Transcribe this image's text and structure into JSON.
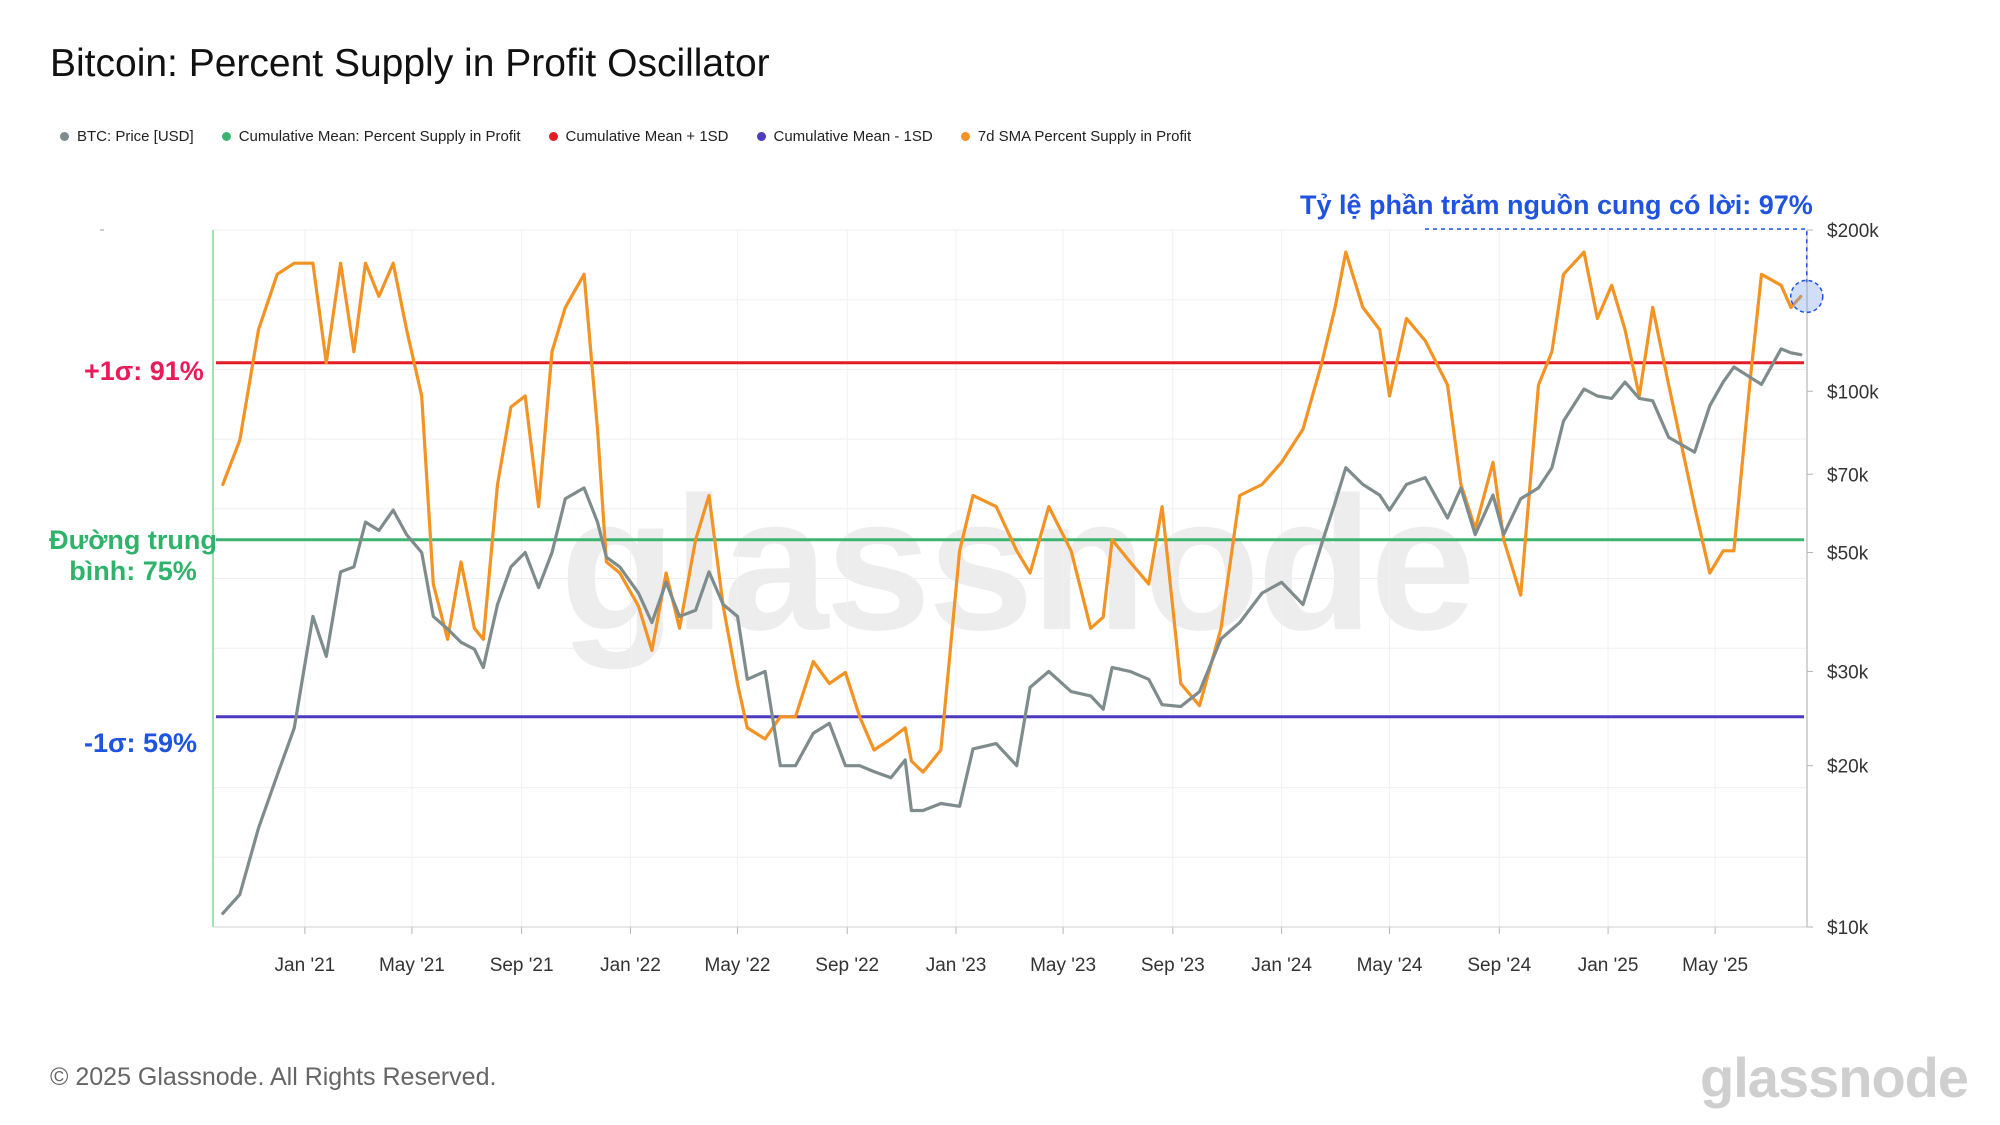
{
  "title": "Bitcoin: Percent Supply in Profit Oscillator",
  "legend": [
    {
      "label": "BTC: Price [USD]",
      "color": "#7f8c8d"
    },
    {
      "label": "Cumulative Mean: Percent Supply in Profit",
      "color": "#3cb371"
    },
    {
      "label": "Cumulative Mean + 1SD",
      "color": "#e31b23"
    },
    {
      "label": "Cumulative Mean - 1SD",
      "color": "#4b3cbf"
    },
    {
      "label": "7d SMA Percent Supply in Profit",
      "color": "#f39323"
    }
  ],
  "annotations": {
    "upper": "+1σ: 91%",
    "mean": "Đường trung bình: 75%",
    "lower": "-1σ: 59%",
    "current": "Tỷ lệ phần trăm nguồn cung có lời: 97%"
  },
  "footer": "© 2025 Glassnode. All Rights Reserved.",
  "watermark": "glassnode",
  "chart_data": {
    "type": "line",
    "x_ticks": [
      "Jan '21",
      "May '21",
      "Sep '21",
      "Jan '22",
      "May '22",
      "Sep '22",
      "Jan '23",
      "May '23",
      "Sep '23",
      "Jan '24",
      "May '24",
      "Sep '24",
      "Jan '25",
      "May '25"
    ],
    "y_right_ticks": [
      "$200k",
      "$100k",
      "$70k",
      "$50k",
      "$30k",
      "$20k",
      "$10k"
    ],
    "y_right_tick_values": [
      200000,
      100000,
      70000,
      50000,
      30000,
      20000,
      10000
    ],
    "y_right_scale": "log",
    "y_right_range": [
      10000,
      200000
    ],
    "y_left_range_percent": [
      40,
      103
    ],
    "reference_lines": {
      "mean_plus_1sd": 91,
      "mean": 75,
      "mean_minus_1sd": 59
    },
    "current_value": 97,
    "series": [
      {
        "name": "7d SMA Percent Supply in Profit",
        "axis": "left",
        "color": "#f39323",
        "x": [
          "2020-10-01",
          "2020-10-20",
          "2020-11-10",
          "2020-12-01",
          "2020-12-20",
          "2021-01-10",
          "2021-01-25",
          "2021-02-10",
          "2021-02-25",
          "2021-03-10",
          "2021-03-25",
          "2021-04-10",
          "2021-04-25",
          "2021-05-12",
          "2021-05-25",
          "2021-06-10",
          "2021-06-25",
          "2021-07-10",
          "2021-07-20",
          "2021-08-05",
          "2021-08-20",
          "2021-09-05",
          "2021-09-20",
          "2021-10-05",
          "2021-10-20",
          "2021-11-10",
          "2021-11-25",
          "2021-12-05",
          "2021-12-20",
          "2022-01-10",
          "2022-01-25",
          "2022-02-10",
          "2022-02-25",
          "2022-03-15",
          "2022-03-30",
          "2022-04-15",
          "2022-05-01",
          "2022-05-12",
          "2022-06-01",
          "2022-06-18",
          "2022-07-05",
          "2022-07-25",
          "2022-08-12",
          "2022-08-30",
          "2022-09-15",
          "2022-10-01",
          "2022-10-20",
          "2022-11-05",
          "2022-11-12",
          "2022-11-25",
          "2022-12-15",
          "2023-01-05",
          "2023-01-20",
          "2023-02-15",
          "2023-03-10",
          "2023-03-25",
          "2023-04-15",
          "2023-05-10",
          "2023-06-01",
          "2023-06-15",
          "2023-06-25",
          "2023-07-15",
          "2023-08-05",
          "2023-08-20",
          "2023-09-10",
          "2023-10-01",
          "2023-10-25",
          "2023-11-15",
          "2023-12-10",
          "2024-01-01",
          "2024-01-25",
          "2024-02-15",
          "2024-03-01",
          "2024-03-13",
          "2024-04-01",
          "2024-04-20",
          "2024-05-01",
          "2024-05-20",
          "2024-06-10",
          "2024-07-05",
          "2024-07-20",
          "2024-08-05",
          "2024-08-25",
          "2024-09-06",
          "2024-09-25",
          "2024-10-15",
          "2024-10-30",
          "2024-11-12",
          "2024-12-05",
          "2024-12-20",
          "2025-01-05",
          "2025-01-20",
          "2025-02-05",
          "2025-02-20",
          "2025-03-10",
          "2025-04-08",
          "2025-04-25",
          "2025-05-10",
          "2025-05-22",
          "2025-06-10",
          "2025-06-22",
          "2025-07-14",
          "2025-07-25",
          "2025-08-05"
        ],
        "y": [
          80,
          84,
          94,
          99,
          100,
          100,
          91,
          100,
          92,
          100,
          97,
          100,
          94,
          88,
          71,
          66,
          73,
          67,
          66,
          80,
          87,
          88,
          78,
          92,
          96,
          99,
          85,
          73,
          72,
          69,
          65,
          72,
          67,
          75,
          79,
          69,
          62,
          58,
          57,
          59,
          59,
          64,
          62,
          63,
          59,
          56,
          57,
          58,
          55,
          54,
          56,
          74,
          79,
          78,
          74,
          72,
          78,
          74,
          67,
          68,
          75,
          73,
          71,
          78,
          62,
          60,
          67,
          79,
          80,
          82,
          85,
          91,
          96,
          101,
          96,
          94,
          88,
          95,
          93,
          89,
          80,
          76,
          82,
          75,
          70,
          89,
          92,
          99,
          101,
          95,
          98,
          94,
          88,
          96,
          89,
          78,
          72,
          74,
          74,
          90,
          99,
          98,
          96,
          97
        ]
      },
      {
        "name": "BTC: Price [USD]",
        "axis": "right",
        "color": "#7f8c8d",
        "x": [
          "2020-10-01",
          "2020-10-20",
          "2020-11-10",
          "2020-12-01",
          "2020-12-20",
          "2021-01-10",
          "2021-01-25",
          "2021-02-10",
          "2021-02-25",
          "2021-03-10",
          "2021-03-25",
          "2021-04-10",
          "2021-04-25",
          "2021-05-12",
          "2021-05-25",
          "2021-06-10",
          "2021-06-25",
          "2021-07-10",
          "2021-07-20",
          "2021-08-05",
          "2021-08-20",
          "2021-09-05",
          "2021-09-20",
          "2021-10-05",
          "2021-10-20",
          "2021-11-10",
          "2021-11-25",
          "2021-12-05",
          "2021-12-20",
          "2022-01-10",
          "2022-01-25",
          "2022-02-10",
          "2022-02-25",
          "2022-03-15",
          "2022-03-30",
          "2022-04-15",
          "2022-05-01",
          "2022-05-12",
          "2022-06-01",
          "2022-06-18",
          "2022-07-05",
          "2022-07-25",
          "2022-08-12",
          "2022-08-30",
          "2022-09-15",
          "2022-10-01",
          "2022-10-20",
          "2022-11-05",
          "2022-11-12",
          "2022-11-25",
          "2022-12-15",
          "2023-01-05",
          "2023-01-20",
          "2023-02-15",
          "2023-03-10",
          "2023-03-25",
          "2023-04-15",
          "2023-05-10",
          "2023-06-01",
          "2023-06-15",
          "2023-06-25",
          "2023-07-15",
          "2023-08-05",
          "2023-08-20",
          "2023-09-10",
          "2023-10-01",
          "2023-10-25",
          "2023-11-15",
          "2023-12-10",
          "2024-01-01",
          "2024-01-25",
          "2024-02-15",
          "2024-03-01",
          "2024-03-13",
          "2024-04-01",
          "2024-04-20",
          "2024-05-01",
          "2024-05-20",
          "2024-06-10",
          "2024-07-05",
          "2024-07-20",
          "2024-08-05",
          "2024-08-25",
          "2024-09-06",
          "2024-09-25",
          "2024-10-15",
          "2024-10-30",
          "2024-11-12",
          "2024-12-05",
          "2024-12-20",
          "2025-01-05",
          "2025-01-20",
          "2025-02-05",
          "2025-02-20",
          "2025-03-10",
          "2025-04-08",
          "2025-04-25",
          "2025-05-10",
          "2025-05-22",
          "2025-06-10",
          "2025-06-22",
          "2025-07-14",
          "2025-07-25",
          "2025-08-05"
        ],
        "y": [
          10600,
          11500,
          15300,
          19200,
          23500,
          38000,
          32000,
          46000,
          47000,
          57000,
          55000,
          60000,
          54000,
          50000,
          38000,
          36000,
          34000,
          33000,
          30500,
          40000,
          47000,
          50000,
          43000,
          50000,
          63000,
          66000,
          57000,
          49000,
          47000,
          42000,
          37000,
          44000,
          38000,
          39000,
          46000,
          40000,
          38000,
          29000,
          30000,
          20000,
          20000,
          23000,
          24000,
          20000,
          20000,
          19500,
          19000,
          20500,
          16500,
          16500,
          17000,
          16800,
          21500,
          22000,
          20000,
          28000,
          30000,
          27500,
          27000,
          25500,
          30500,
          30000,
          29000,
          26000,
          25800,
          27500,
          34500,
          37000,
          42000,
          44000,
          40000,
          52000,
          62000,
          72000,
          67000,
          64000,
          60000,
          67000,
          69000,
          58000,
          66000,
          54000,
          64000,
          54000,
          63000,
          66000,
          72000,
          88000,
          101000,
          98000,
          97000,
          104000,
          97000,
          96000,
          82000,
          77000,
          94000,
          104000,
          111000,
          106000,
          103000,
          120000,
          118000,
          117000
        ]
      }
    ]
  }
}
